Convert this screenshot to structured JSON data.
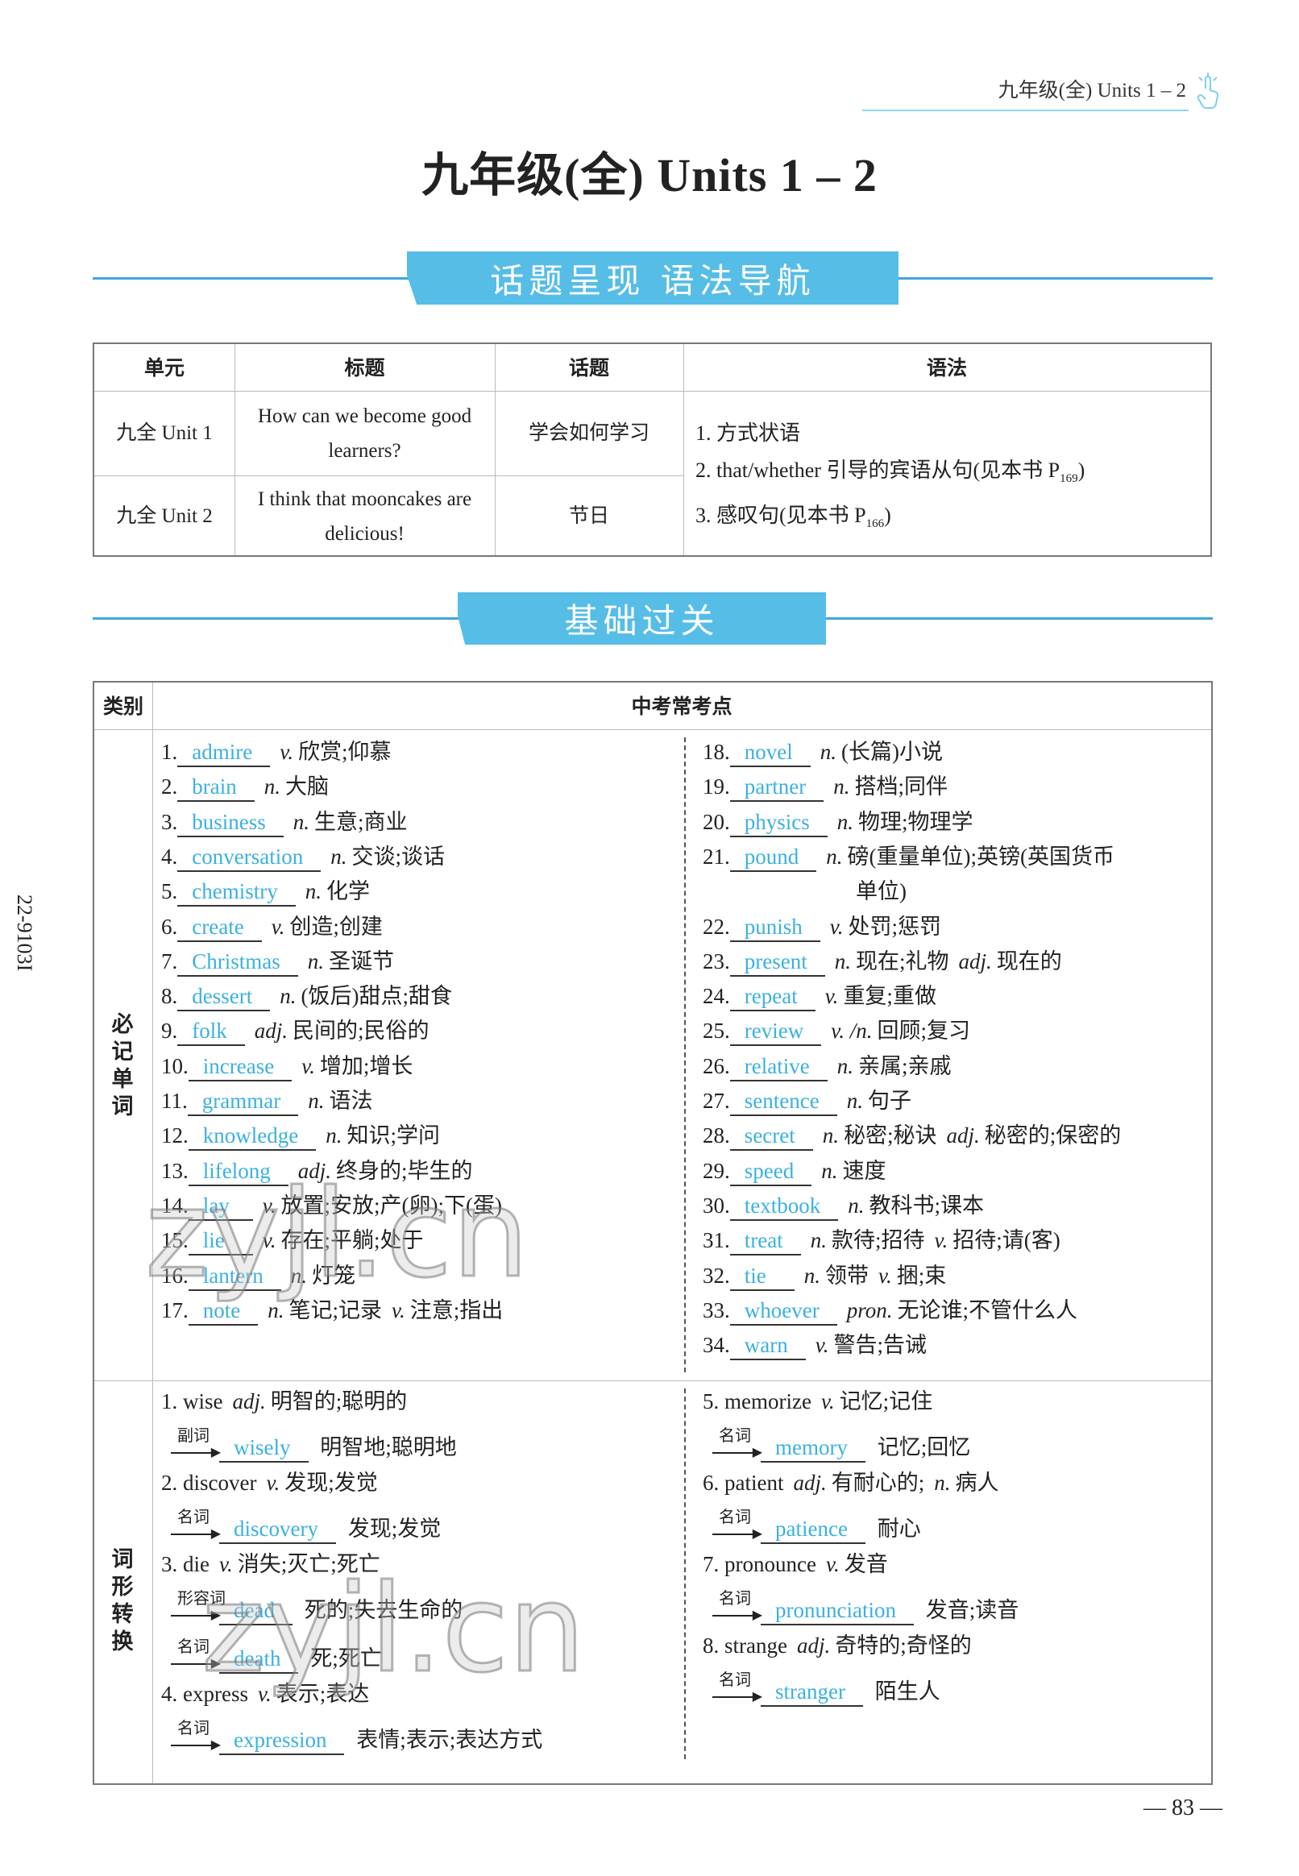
{
  "running_header": "九年级(全) Units 1 – 2",
  "page_title": "九年级(全) Units 1 – 2",
  "banner1": "话题呈现  语法导航",
  "banner2": "基础过关",
  "side_code": "22-9103I",
  "page_number": "— 83 —",
  "watermark": "zyjl.cn",
  "colors": {
    "accent": "#56bde7",
    "answer": "#3bb0e0",
    "line": "#3fa6dc"
  },
  "topic_table": {
    "headers": [
      "单元",
      "标题",
      "话题",
      "语法"
    ],
    "rows": [
      {
        "unit": "九全 Unit 1",
        "title": "How can we become good learners?",
        "topic": "学会如何学习"
      },
      {
        "unit": "九全 Unit 2",
        "title": "I think that mooncakes are delicious!",
        "topic": "节日"
      }
    ],
    "grammar": [
      {
        "text": "1. 方式状语",
        "sub": ""
      },
      {
        "text": "2. that/whether 引导的宾语从句(见本书 P",
        "sub": "169",
        "end": ")"
      },
      {
        "text": "3. 感叹句(见本书 P",
        "sub": "166",
        "end": ")"
      }
    ]
  },
  "vocab_table": {
    "header_category": "类别",
    "header_points": "中考常考点",
    "section1_label": "必记单词",
    "section2_label": "词形转换",
    "words": [
      {
        "num": "1.",
        "answer": "admire",
        "senses": [
          [
            "v.",
            "欣赏;仰慕"
          ]
        ]
      },
      {
        "num": "2.",
        "answer": "brain",
        "senses": [
          [
            "n.",
            "大脑"
          ]
        ]
      },
      {
        "num": "3.",
        "answer": "business",
        "senses": [
          [
            "n.",
            "生意;商业"
          ]
        ]
      },
      {
        "num": "4.",
        "answer": "conversation",
        "senses": [
          [
            "n.",
            "交谈;谈话"
          ]
        ]
      },
      {
        "num": "5.",
        "answer": "chemistry",
        "senses": [
          [
            "n.",
            "化学"
          ]
        ]
      },
      {
        "num": "6.",
        "answer": "create",
        "senses": [
          [
            "v.",
            "创造;创建"
          ]
        ]
      },
      {
        "num": "7.",
        "answer": "Christmas",
        "senses": [
          [
            "n.",
            "圣诞节"
          ]
        ]
      },
      {
        "num": "8.",
        "answer": "dessert",
        "senses": [
          [
            "n.",
            "(饭后)甜点;甜食"
          ]
        ]
      },
      {
        "num": "9.",
        "answer": "folk",
        "senses": [
          [
            "adj.",
            "民间的;民俗的"
          ]
        ]
      },
      {
        "num": "10.",
        "answer": "increase",
        "senses": [
          [
            "v.",
            "增加;增长"
          ]
        ]
      },
      {
        "num": "11.",
        "answer": "grammar",
        "senses": [
          [
            "n.",
            "语法"
          ]
        ]
      },
      {
        "num": "12.",
        "answer": "knowledge",
        "senses": [
          [
            "n.",
            "知识;学问"
          ]
        ]
      },
      {
        "num": "13.",
        "answer": "lifelong",
        "senses": [
          [
            "adj.",
            "终身的;毕生的"
          ]
        ]
      },
      {
        "num": "14.",
        "answer": "lay",
        "senses": [
          [
            "v.",
            "放置;安放;产(卵);下(蛋)"
          ]
        ]
      },
      {
        "num": "15.",
        "answer": "lie",
        "senses": [
          [
            "v.",
            "存在;平躺;处于"
          ]
        ]
      },
      {
        "num": "16.",
        "answer": "lantern",
        "senses": [
          [
            "n.",
            "灯笼"
          ]
        ]
      },
      {
        "num": "17.",
        "answer": "note",
        "senses": [
          [
            "n.",
            "笔记;记录"
          ],
          [
            "v.",
            "注意;指出"
          ]
        ]
      },
      {
        "num": "18.",
        "answer": "novel",
        "senses": [
          [
            "n.",
            "(长篇)小说"
          ]
        ]
      },
      {
        "num": "19.",
        "answer": "partner",
        "senses": [
          [
            "n.",
            "搭档;同伴"
          ]
        ]
      },
      {
        "num": "20.",
        "answer": "physics",
        "senses": [
          [
            "n.",
            "物理;物理学"
          ]
        ]
      },
      {
        "num": "21.",
        "answer": "pound",
        "senses": [
          [
            "n.",
            "磅(重量单位);英镑(英国货币"
          ]
        ],
        "cont": "单位)"
      },
      {
        "num": "22.",
        "answer": "punish",
        "senses": [
          [
            "v.",
            "处罚;惩罚"
          ]
        ]
      },
      {
        "num": "23.",
        "answer": "present",
        "senses": [
          [
            "n.",
            "现在;礼物"
          ],
          [
            "adj.",
            "现在的"
          ]
        ]
      },
      {
        "num": "24.",
        "answer": "repeat",
        "senses": [
          [
            "v.",
            "重复;重做"
          ]
        ]
      },
      {
        "num": "25.",
        "answer": "review",
        "senses": [
          [
            "v. /n.",
            "回顾;复习"
          ]
        ]
      },
      {
        "num": "26.",
        "answer": "relative",
        "senses": [
          [
            "n.",
            "亲属;亲戚"
          ]
        ]
      },
      {
        "num": "27.",
        "answer": "sentence",
        "senses": [
          [
            "n.",
            "句子"
          ]
        ]
      },
      {
        "num": "28.",
        "answer": "secret",
        "senses": [
          [
            "n.",
            "秘密;秘诀"
          ],
          [
            "adj.",
            "秘密的;保密的"
          ]
        ]
      },
      {
        "num": "29.",
        "answer": "speed",
        "senses": [
          [
            "n.",
            "速度"
          ]
        ]
      },
      {
        "num": "30.",
        "answer": "textbook",
        "senses": [
          [
            "n.",
            "教科书;课本"
          ]
        ]
      },
      {
        "num": "31.",
        "answer": "treat",
        "senses": [
          [
            "n.",
            "款待;招待"
          ],
          [
            "v.",
            "招待;请(客)"
          ]
        ]
      },
      {
        "num": "32.",
        "answer": "tie",
        "senses": [
          [
            "n.",
            "领带"
          ],
          [
            "v.",
            "捆;束"
          ]
        ]
      },
      {
        "num": "33.",
        "answer": "whoever",
        "senses": [
          [
            "pron.",
            "无论谁;不管什么人"
          ]
        ]
      },
      {
        "num": "34.",
        "answer": "warn",
        "senses": [
          [
            "v.",
            "警告;告诫"
          ]
        ]
      }
    ],
    "word_forms": [
      {
        "num": "1.",
        "word": "wise",
        "pos": "adj.",
        "meaning": "明智的;聪明的",
        "derived": [
          {
            "label": "副词",
            "answer": "wisely",
            "meaning": "明智地;聪明地"
          }
        ]
      },
      {
        "num": "2.",
        "word": "discover",
        "pos": "v.",
        "meaning": "发现;发觉",
        "derived": [
          {
            "label": "名词",
            "answer": "discovery",
            "meaning": "发现;发觉"
          }
        ]
      },
      {
        "num": "3.",
        "word": "die",
        "pos": "v.",
        "meaning": "消失;灭亡;死亡",
        "derived": [
          {
            "label": "形容词",
            "answer": "dead",
            "meaning": "死的;失去生命的"
          },
          {
            "label": "名词",
            "answer": "death",
            "meaning": "死;死亡"
          }
        ]
      },
      {
        "num": "4.",
        "word": "express",
        "pos": "v.",
        "meaning": "表示;表达",
        "derived": [
          {
            "label": "名词",
            "answer": "expression",
            "meaning": "表情;表示;表达方式"
          }
        ]
      },
      {
        "num": "5.",
        "word": "memorize",
        "pos": "v.",
        "meaning": "记忆;记住",
        "derived": [
          {
            "label": "名词",
            "answer": "memory",
            "meaning": "记忆;回忆"
          }
        ]
      },
      {
        "num": "6.",
        "word": "patient",
        "pos": "adj.",
        "meaning": "有耐心的;",
        "pos2": "n.",
        "meaning2": "病人",
        "derived": [
          {
            "label": "名词",
            "answer": "patience",
            "meaning": "耐心"
          }
        ]
      },
      {
        "num": "7.",
        "word": "pronounce",
        "pos": "v.",
        "meaning": "发音",
        "derived": [
          {
            "label": "名词",
            "answer": "pronunciation",
            "meaning": "发音;读音"
          }
        ]
      },
      {
        "num": "8.",
        "word": "strange",
        "pos": "adj.",
        "meaning": "奇特的;奇怪的",
        "derived": [
          {
            "label": "名词",
            "answer": "stranger",
            "meaning": "陌生人"
          }
        ]
      }
    ]
  }
}
